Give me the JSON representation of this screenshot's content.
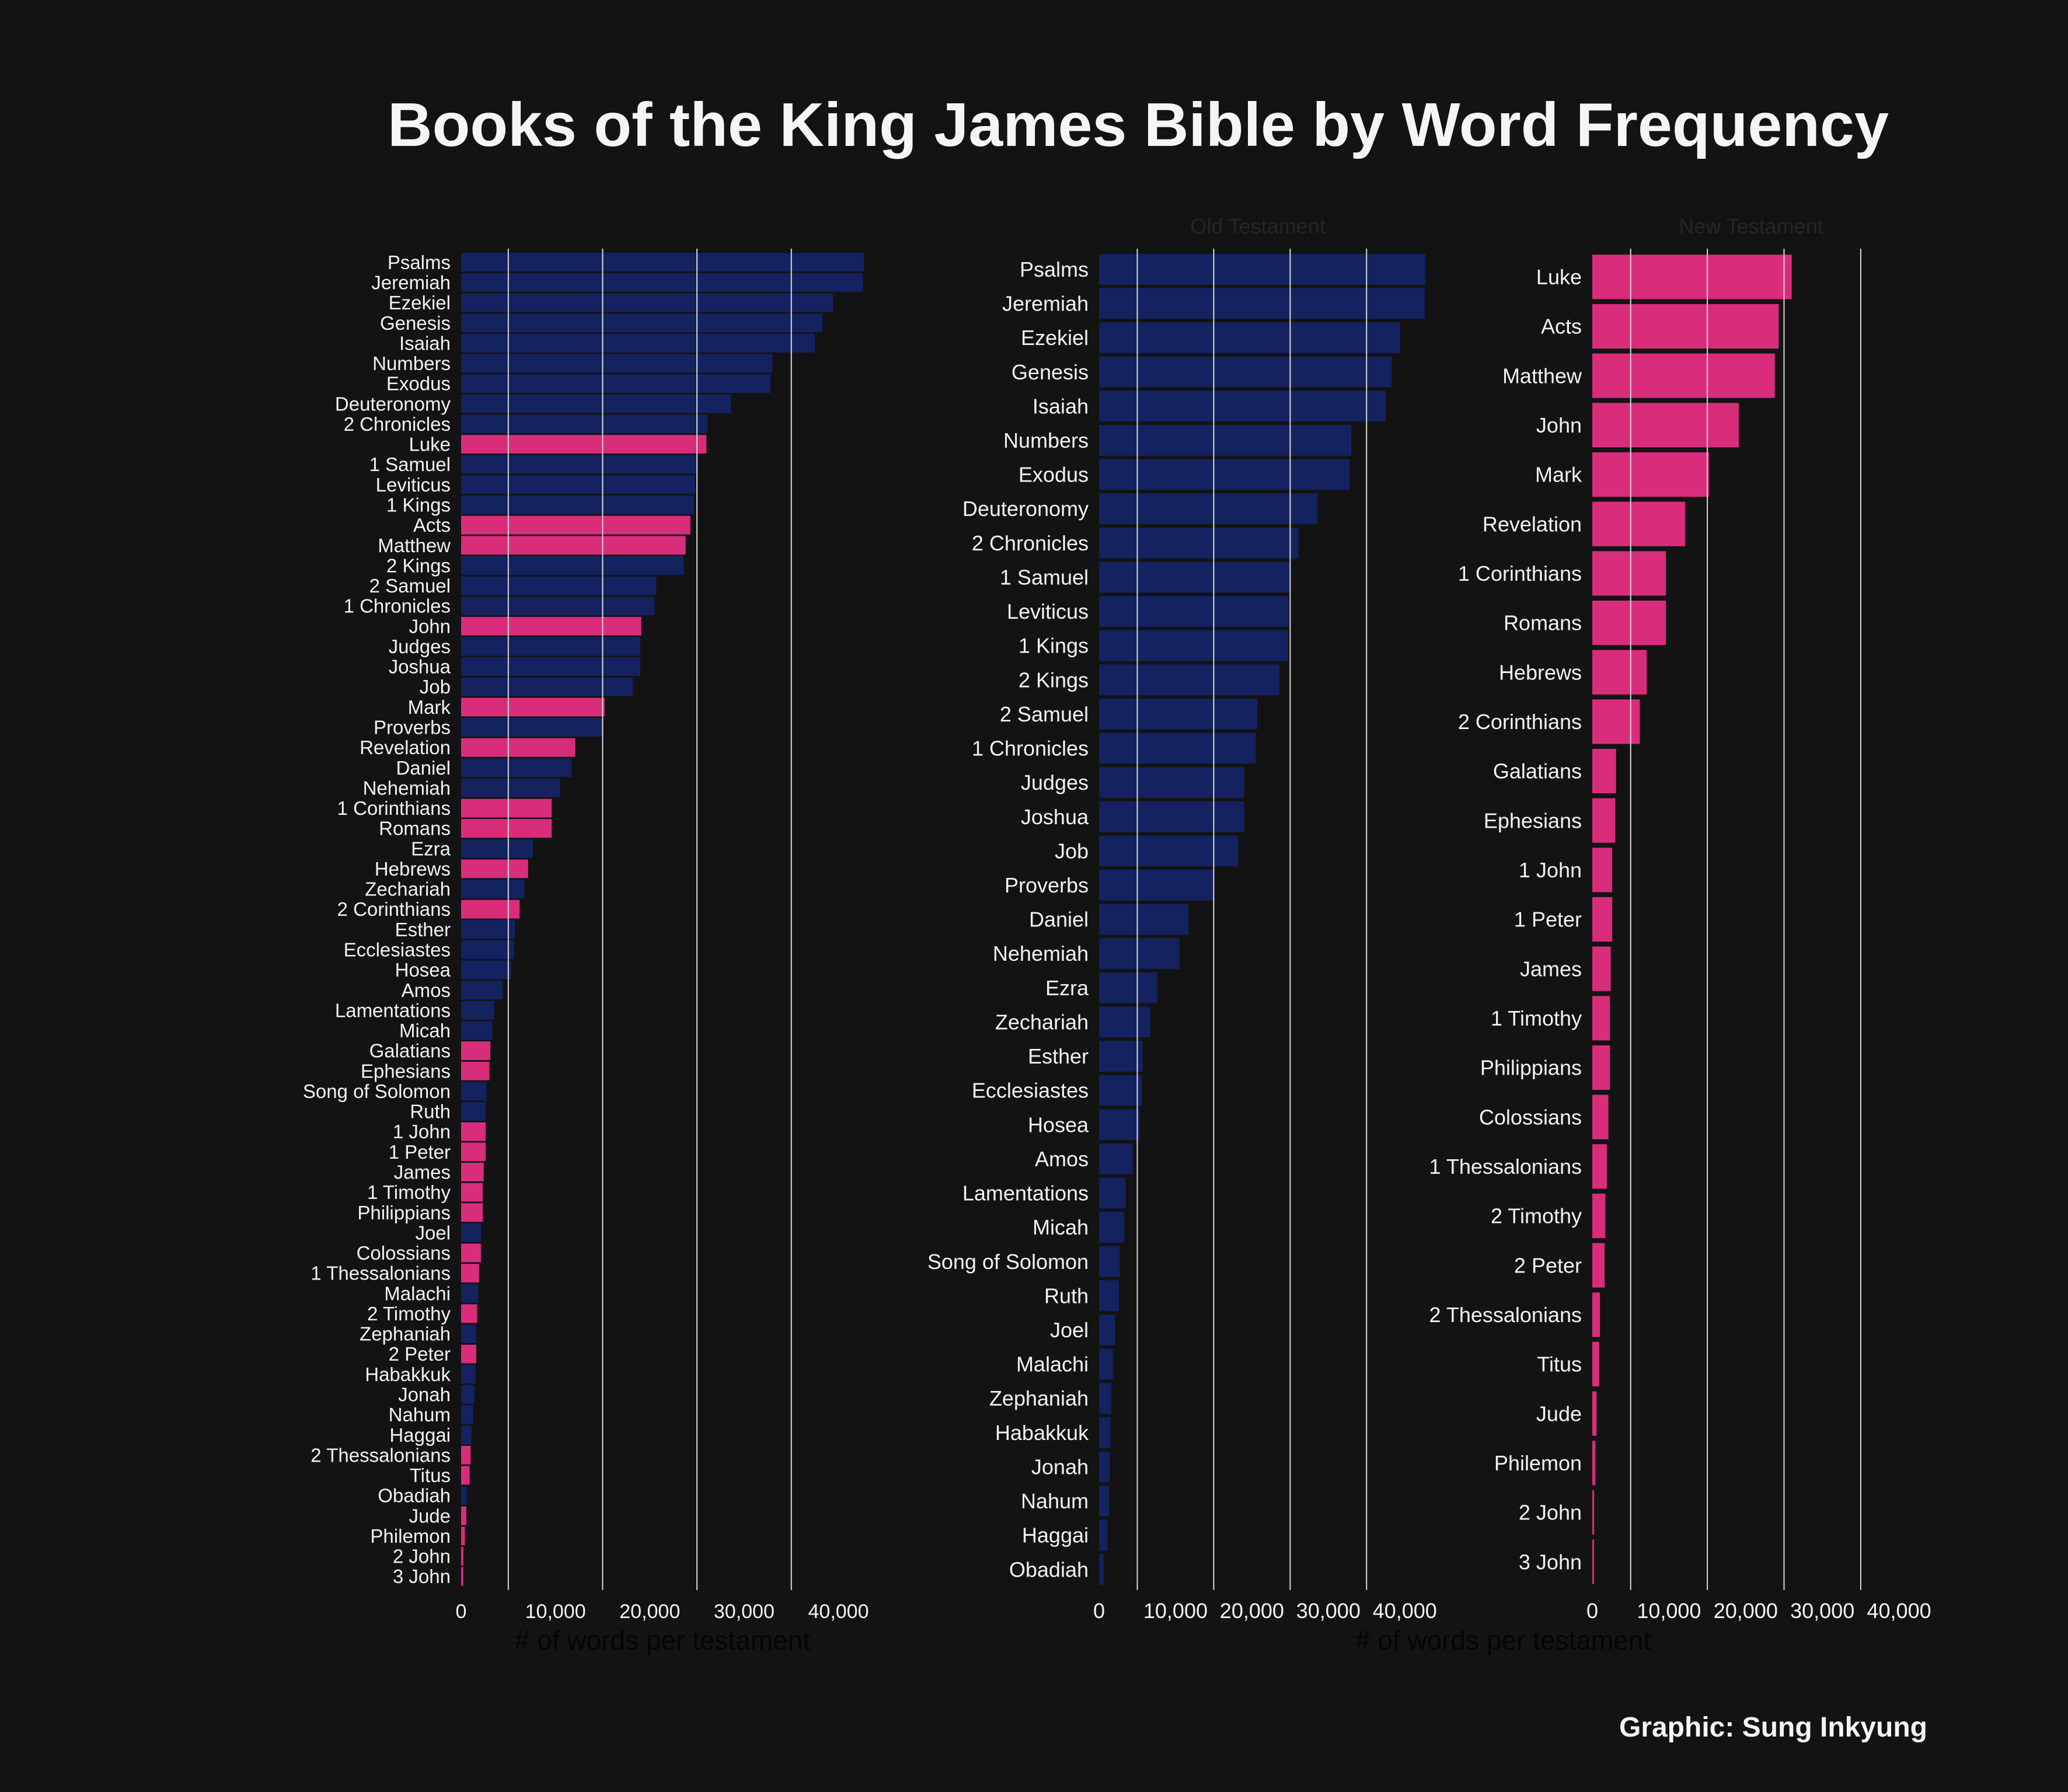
{
  "title": "Books of the King James Bible by Word Frequency",
  "credit": "Graphic: Sung Inkyung",
  "colors": {
    "background": "#131313",
    "old_testament": "#142260",
    "new_testament": "#d92d7c",
    "text": "#f2f2f2",
    "gridline": "#d8d8d8",
    "muted": "#1e1e1e"
  },
  "chart_data": [
    {
      "type": "bar",
      "orientation": "horizontal",
      "panel": "combined",
      "xlabel": "# of words per testament",
      "xlim": [
        0,
        43000
      ],
      "xticks": [
        0,
        10000,
        20000,
        30000,
        40000
      ],
      "xtick_labels": [
        "0",
        "10,000",
        "20,000",
        "30,000",
        "40,000"
      ],
      "grid": true,
      "series": [
        {
          "name": "Old Testament",
          "color": "#142260"
        },
        {
          "name": "New Testament",
          "color": "#d92d7c"
        }
      ],
      "categories": [
        "Psalms",
        "Jeremiah",
        "Ezekiel",
        "Genesis",
        "Isaiah",
        "Numbers",
        "Exodus",
        "Deuteronomy",
        "2 Chronicles",
        "Luke",
        "1 Samuel",
        "Leviticus",
        "1 Kings",
        "Acts",
        "Matthew",
        "2 Kings",
        "2 Samuel",
        "1 Chronicles",
        "John",
        "Judges",
        "Joshua",
        "Job",
        "Mark",
        "Proverbs",
        "Revelation",
        "Daniel",
        "Nehemiah",
        "1 Corinthians",
        "Romans",
        "Ezra",
        "Hebrews",
        "Zechariah",
        "2 Corinthians",
        "Esther",
        "Ecclesiastes",
        "Hosea",
        "Amos",
        "Lamentations",
        "Micah",
        "Galatians",
        "Ephesians",
        "Song of Solomon",
        "Ruth",
        "1 John",
        "1 Peter",
        "James",
        "1 Timothy",
        "Philippians",
        "Joel",
        "Colossians",
        "1 Thessalonians",
        "Malachi",
        "2 Timothy",
        "Zephaniah",
        "2 Peter",
        "Habakkuk",
        "Jonah",
        "Nahum",
        "Haggai",
        "2 Thessalonians",
        "Titus",
        "Obadiah",
        "Jude",
        "Philemon",
        "2 John",
        "3 John"
      ],
      "values": [
        42700,
        42600,
        39400,
        38300,
        37500,
        33000,
        32800,
        28600,
        26100,
        26000,
        25100,
        24800,
        24700,
        24300,
        23800,
        23600,
        20700,
        20500,
        19100,
        19000,
        19000,
        18200,
        15200,
        15100,
        12100,
        11700,
        10500,
        9600,
        9600,
        7600,
        7100,
        6700,
        6200,
        5700,
        5600,
        5300,
        4400,
        3500,
        3300,
        3100,
        3000,
        2700,
        2600,
        2600,
        2600,
        2400,
        2300,
        2300,
        2100,
        2100,
        1900,
        1800,
        1700,
        1600,
        1600,
        1500,
        1400,
        1300,
        1100,
        1000,
        900,
        600,
        550,
        400,
        240,
        230
      ],
      "groups": [
        "OT",
        "OT",
        "OT",
        "OT",
        "OT",
        "OT",
        "OT",
        "OT",
        "OT",
        "NT",
        "OT",
        "OT",
        "OT",
        "NT",
        "NT",
        "OT",
        "OT",
        "OT",
        "NT",
        "OT",
        "OT",
        "OT",
        "NT",
        "OT",
        "NT",
        "OT",
        "OT",
        "NT",
        "NT",
        "OT",
        "NT",
        "OT",
        "NT",
        "OT",
        "OT",
        "OT",
        "OT",
        "OT",
        "OT",
        "NT",
        "NT",
        "OT",
        "OT",
        "NT",
        "NT",
        "NT",
        "NT",
        "NT",
        "OT",
        "NT",
        "NT",
        "OT",
        "NT",
        "OT",
        "NT",
        "OT",
        "OT",
        "OT",
        "OT",
        "NT",
        "NT",
        "OT",
        "NT",
        "NT",
        "NT",
        "NT"
      ]
    },
    {
      "type": "bar",
      "orientation": "horizontal",
      "panel": "old",
      "title": "Old Testament",
      "xlabel": "# of words per testament",
      "xlim": [
        0,
        43000
      ],
      "xticks": [
        0,
        10000,
        20000,
        30000,
        40000
      ],
      "xtick_labels": [
        "0",
        "10,000",
        "20,000",
        "30,000",
        "40,000"
      ],
      "grid": true,
      "color": "#142260",
      "categories": [
        "Psalms",
        "Jeremiah",
        "Ezekiel",
        "Genesis",
        "Isaiah",
        "Numbers",
        "Exodus",
        "Deuteronomy",
        "2 Chronicles",
        "1 Samuel",
        "Leviticus",
        "1 Kings",
        "2 Kings",
        "2 Samuel",
        "1 Chronicles",
        "Judges",
        "Joshua",
        "Job",
        "Proverbs",
        "Daniel",
        "Nehemiah",
        "Ezra",
        "Zechariah",
        "Esther",
        "Ecclesiastes",
        "Hosea",
        "Amos",
        "Lamentations",
        "Micah",
        "Song of Solomon",
        "Ruth",
        "Joel",
        "Malachi",
        "Zephaniah",
        "Habakkuk",
        "Jonah",
        "Nahum",
        "Haggai",
        "Obadiah"
      ],
      "values": [
        42700,
        42600,
        39400,
        38300,
        37500,
        33000,
        32800,
        28600,
        26100,
        25100,
        24800,
        24700,
        23600,
        20700,
        20500,
        19000,
        19000,
        18200,
        15100,
        11700,
        10500,
        7600,
        6700,
        5700,
        5600,
        5300,
        4400,
        3500,
        3300,
        2700,
        2600,
        2100,
        1800,
        1600,
        1500,
        1400,
        1300,
        1100,
        600
      ]
    },
    {
      "type": "bar",
      "orientation": "horizontal",
      "panel": "new",
      "title": "New Testament",
      "xlim": [
        0,
        43000
      ],
      "xticks": [
        0,
        10000,
        20000,
        30000,
        40000
      ],
      "xtick_labels": [
        "0",
        "10,000",
        "20,000",
        "30,000",
        "40,000"
      ],
      "grid": true,
      "color": "#d92d7c",
      "categories": [
        "Luke",
        "Acts",
        "Matthew",
        "John",
        "Mark",
        "Revelation",
        "1 Corinthians",
        "Romans",
        "Hebrews",
        "2 Corinthians",
        "Galatians",
        "Ephesians",
        "1 John",
        "1 Peter",
        "James",
        "1 Timothy",
        "Philippians",
        "Colossians",
        "1 Thessalonians",
        "2 Timothy",
        "2 Peter",
        "2 Thessalonians",
        "Titus",
        "Jude",
        "Philemon",
        "2 John",
        "3 John"
      ],
      "values": [
        26000,
        24300,
        23800,
        19100,
        15200,
        12100,
        9600,
        9600,
        7100,
        6200,
        3100,
        3000,
        2600,
        2600,
        2400,
        2300,
        2300,
        2100,
        1900,
        1700,
        1600,
        1000,
        900,
        550,
        400,
        240,
        230
      ]
    }
  ]
}
